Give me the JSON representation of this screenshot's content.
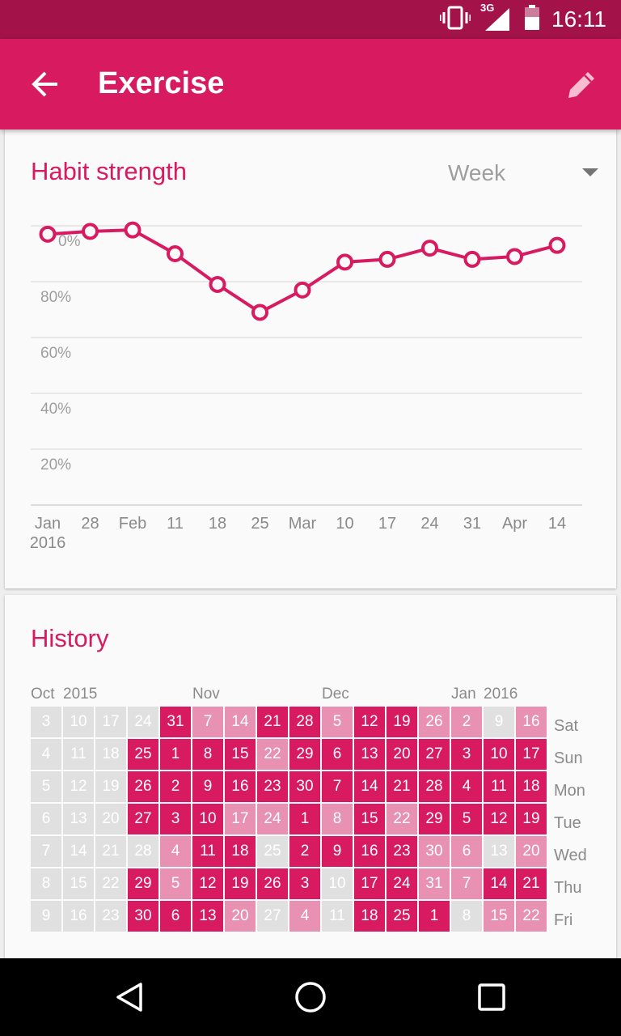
{
  "status_bar": {
    "time": "16:11",
    "network": "3G",
    "icons": [
      "vibrate-icon",
      "signal-icon",
      "battery-icon"
    ]
  },
  "app_bar": {
    "title": "Exercise",
    "back_icon": "arrow-back-icon",
    "edit_icon": "pencil-icon"
  },
  "habit_strength": {
    "title": "Habit strength",
    "period": "Week"
  },
  "chart_data": {
    "type": "line",
    "title": "Habit strength",
    "x_labels": [
      "Jan\n2016",
      "28",
      "Feb",
      "11",
      "18",
      "25",
      "Mar",
      "10",
      "17",
      "24",
      "31",
      "Apr",
      "14"
    ],
    "y_ticks": [
      "20%",
      "40%",
      "60%",
      "80%",
      "0%"
    ],
    "ylim": [
      0,
      100
    ],
    "grid": true,
    "series": [
      {
        "values": [
          97,
          98,
          98.5,
          90,
          79,
          69,
          77,
          87,
          88,
          92,
          88,
          89,
          93
        ]
      }
    ],
    "color": "#d81b60"
  },
  "history": {
    "title": "History",
    "month_labels": [
      {
        "text": "Oct",
        "col": 0
      },
      {
        "text": "2015",
        "col": 1
      },
      {
        "text": "Nov",
        "col": 5
      },
      {
        "text": "Dec",
        "col": 9
      },
      {
        "text": "Jan",
        "col": 13
      },
      {
        "text": "2016",
        "col": 14
      }
    ],
    "day_labels": [
      "Sat",
      "Sun",
      "Mon",
      "Tue",
      "Wed",
      "Thu",
      "Fri"
    ],
    "colors": {
      "0": "#e0e0e0",
      "1": "#e991b2",
      "2": "#d81b60"
    },
    "weeks": [
      {
        "days": [
          "3",
          "4",
          "5",
          "6",
          "7",
          "8",
          "9"
        ],
        "levels": [
          0,
          0,
          0,
          0,
          0,
          0,
          0
        ]
      },
      {
        "days": [
          "10",
          "11",
          "12",
          "13",
          "14",
          "15",
          "16"
        ],
        "levels": [
          0,
          0,
          0,
          0,
          0,
          0,
          0
        ]
      },
      {
        "days": [
          "17",
          "18",
          "19",
          "20",
          "21",
          "22",
          "23"
        ],
        "levels": [
          0,
          0,
          0,
          0,
          0,
          0,
          0
        ]
      },
      {
        "days": [
          "24",
          "25",
          "26",
          "27",
          "28",
          "29",
          "30"
        ],
        "levels": [
          0,
          2,
          2,
          2,
          0,
          2,
          2
        ]
      },
      {
        "days": [
          "31",
          "1",
          "2",
          "3",
          "4",
          "5",
          "6"
        ],
        "levels": [
          2,
          2,
          2,
          2,
          1,
          1,
          2
        ]
      },
      {
        "days": [
          "7",
          "8",
          "9",
          "10",
          "11",
          "12",
          "13"
        ],
        "levels": [
          1,
          2,
          2,
          2,
          2,
          2,
          2
        ]
      },
      {
        "days": [
          "14",
          "15",
          "16",
          "17",
          "18",
          "19",
          "20"
        ],
        "levels": [
          1,
          2,
          2,
          1,
          2,
          2,
          1
        ]
      },
      {
        "days": [
          "21",
          "22",
          "23",
          "24",
          "25",
          "26",
          "27"
        ],
        "levels": [
          2,
          1,
          2,
          1,
          0,
          2,
          0
        ]
      },
      {
        "days": [
          "28",
          "29",
          "30",
          "1",
          "2",
          "3",
          "4"
        ],
        "levels": [
          2,
          2,
          2,
          2,
          2,
          2,
          1
        ]
      },
      {
        "days": [
          "5",
          "6",
          "7",
          "8",
          "9",
          "10",
          "11"
        ],
        "levels": [
          1,
          2,
          2,
          1,
          2,
          0,
          0
        ]
      },
      {
        "days": [
          "12",
          "13",
          "14",
          "15",
          "16",
          "17",
          "18"
        ],
        "levels": [
          2,
          2,
          2,
          2,
          2,
          2,
          2
        ]
      },
      {
        "days": [
          "19",
          "20",
          "21",
          "22",
          "23",
          "24",
          "25"
        ],
        "levels": [
          2,
          2,
          2,
          1,
          2,
          2,
          2
        ]
      },
      {
        "days": [
          "26",
          "27",
          "28",
          "29",
          "30",
          "31",
          "1"
        ],
        "levels": [
          1,
          2,
          2,
          2,
          1,
          1,
          2
        ]
      },
      {
        "days": [
          "2",
          "3",
          "4",
          "5",
          "6",
          "7",
          "8"
        ],
        "levels": [
          1,
          2,
          2,
          2,
          1,
          1,
          0
        ]
      },
      {
        "days": [
          "9",
          "10",
          "11",
          "12",
          "13",
          "14",
          "15"
        ],
        "levels": [
          0,
          2,
          2,
          2,
          0,
          2,
          1
        ]
      },
      {
        "days": [
          "16",
          "17",
          "18",
          "19",
          "20",
          "21",
          "22"
        ],
        "levels": [
          1,
          2,
          2,
          2,
          1,
          2,
          1
        ]
      }
    ]
  },
  "nav_bar": {
    "buttons": [
      "back-triangle-icon",
      "home-circle-icon",
      "recents-square-icon"
    ]
  }
}
